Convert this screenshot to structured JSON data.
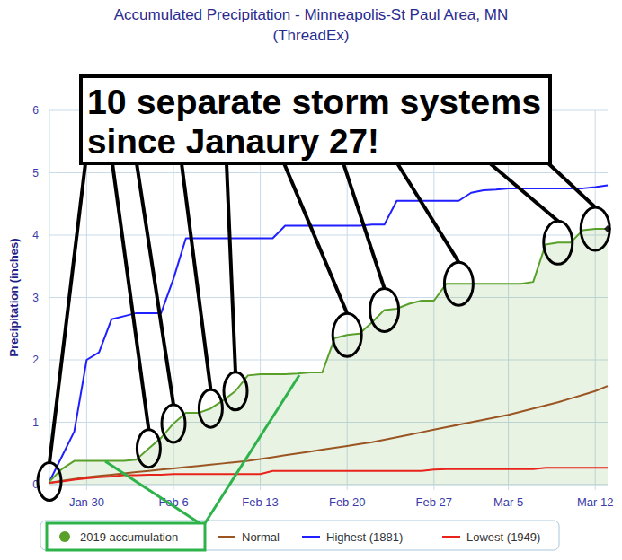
{
  "chart_data": {
    "type": "line",
    "title": "Accumulated Precipitation - Minneapolis-St Paul Area, MN",
    "subtitle": "(ThreadEx)",
    "y_label": "Precipitation (inches)",
    "categories": [
      null,
      null,
      null,
      "Jan 30",
      null,
      null,
      null,
      null,
      null,
      null,
      "Feb 6",
      null,
      null,
      null,
      null,
      null,
      null,
      "Feb 13",
      null,
      null,
      null,
      null,
      null,
      null,
      "Feb 20",
      null,
      null,
      null,
      null,
      null,
      null,
      "Feb 27",
      null,
      null,
      null,
      null,
      null,
      "Mar 5",
      null,
      null,
      null,
      null,
      null,
      null,
      "Mar 12",
      null
    ],
    "series": [
      {
        "name": "2019 accumulation",
        "color": "#58a02a",
        "type": "area",
        "marker": "circle",
        "values": [
          0.05,
          0.25,
          0.38,
          0.38,
          0.38,
          0.38,
          0.38,
          0.4,
          0.58,
          0.75,
          0.98,
          1.15,
          1.15,
          1.22,
          1.35,
          1.5,
          1.75,
          1.77,
          1.77,
          1.77,
          1.78,
          1.8,
          1.8,
          2.35,
          2.4,
          2.42,
          2.6,
          2.8,
          2.82,
          2.9,
          2.95,
          2.95,
          3.22,
          3.22,
          3.22,
          3.22,
          3.22,
          3.22,
          3.22,
          3.25,
          3.85,
          3.88,
          3.88,
          4.08,
          4.1,
          4.1
        ]
      },
      {
        "name": "Normal",
        "color": "#9a5523",
        "type": "line",
        "values": [
          0.03,
          0.06,
          0.09,
          0.12,
          0.14,
          0.16,
          0.18,
          0.2,
          0.22,
          0.24,
          0.26,
          0.28,
          0.3,
          0.32,
          0.34,
          0.36,
          0.38,
          0.41,
          0.44,
          0.47,
          0.5,
          0.53,
          0.56,
          0.59,
          0.62,
          0.65,
          0.68,
          0.72,
          0.76,
          0.8,
          0.84,
          0.88,
          0.92,
          0.96,
          1.0,
          1.04,
          1.08,
          1.12,
          1.17,
          1.22,
          1.27,
          1.32,
          1.38,
          1.44,
          1.5,
          1.58
        ]
      },
      {
        "name": "Highest (1881)",
        "color": "#1f1fff",
        "type": "line",
        "values": [
          0.05,
          0.45,
          0.85,
          2.0,
          2.12,
          2.65,
          2.7,
          2.75,
          2.75,
          2.75,
          3.3,
          3.95,
          3.95,
          3.95,
          3.95,
          3.95,
          3.95,
          3.95,
          3.95,
          4.15,
          4.15,
          4.15,
          4.15,
          4.15,
          4.15,
          4.15,
          4.17,
          4.17,
          4.55,
          4.55,
          4.55,
          4.55,
          4.55,
          4.55,
          4.68,
          4.72,
          4.73,
          4.75,
          4.75,
          4.75,
          4.75,
          4.75,
          4.75,
          4.75,
          4.77,
          4.8
        ]
      },
      {
        "name": "Lowest (1949)",
        "color": "#e8231b",
        "type": "line",
        "values": [
          0.03,
          0.05,
          0.08,
          0.1,
          0.12,
          0.13,
          0.15,
          0.15,
          0.16,
          0.16,
          0.17,
          0.17,
          0.17,
          0.17,
          0.17,
          0.17,
          0.17,
          0.17,
          0.22,
          0.22,
          0.22,
          0.22,
          0.22,
          0.22,
          0.22,
          0.22,
          0.22,
          0.22,
          0.22,
          0.22,
          0.22,
          0.24,
          0.25,
          0.25,
          0.25,
          0.25,
          0.25,
          0.25,
          0.25,
          0.25,
          0.27,
          0.27,
          0.27,
          0.27,
          0.27,
          0.27
        ]
      }
    ],
    "ylim": [
      0,
      6
    ],
    "yticks": [
      0,
      1,
      2,
      3,
      4,
      5,
      6
    ],
    "grid": true,
    "legend": "bottom",
    "annotation": {
      "text": [
        "10 separate storm systems",
        "since Janaury 27!"
      ],
      "points": [
        0,
        8,
        10,
        13,
        15,
        24,
        27,
        33,
        41,
        44
      ]
    }
  }
}
